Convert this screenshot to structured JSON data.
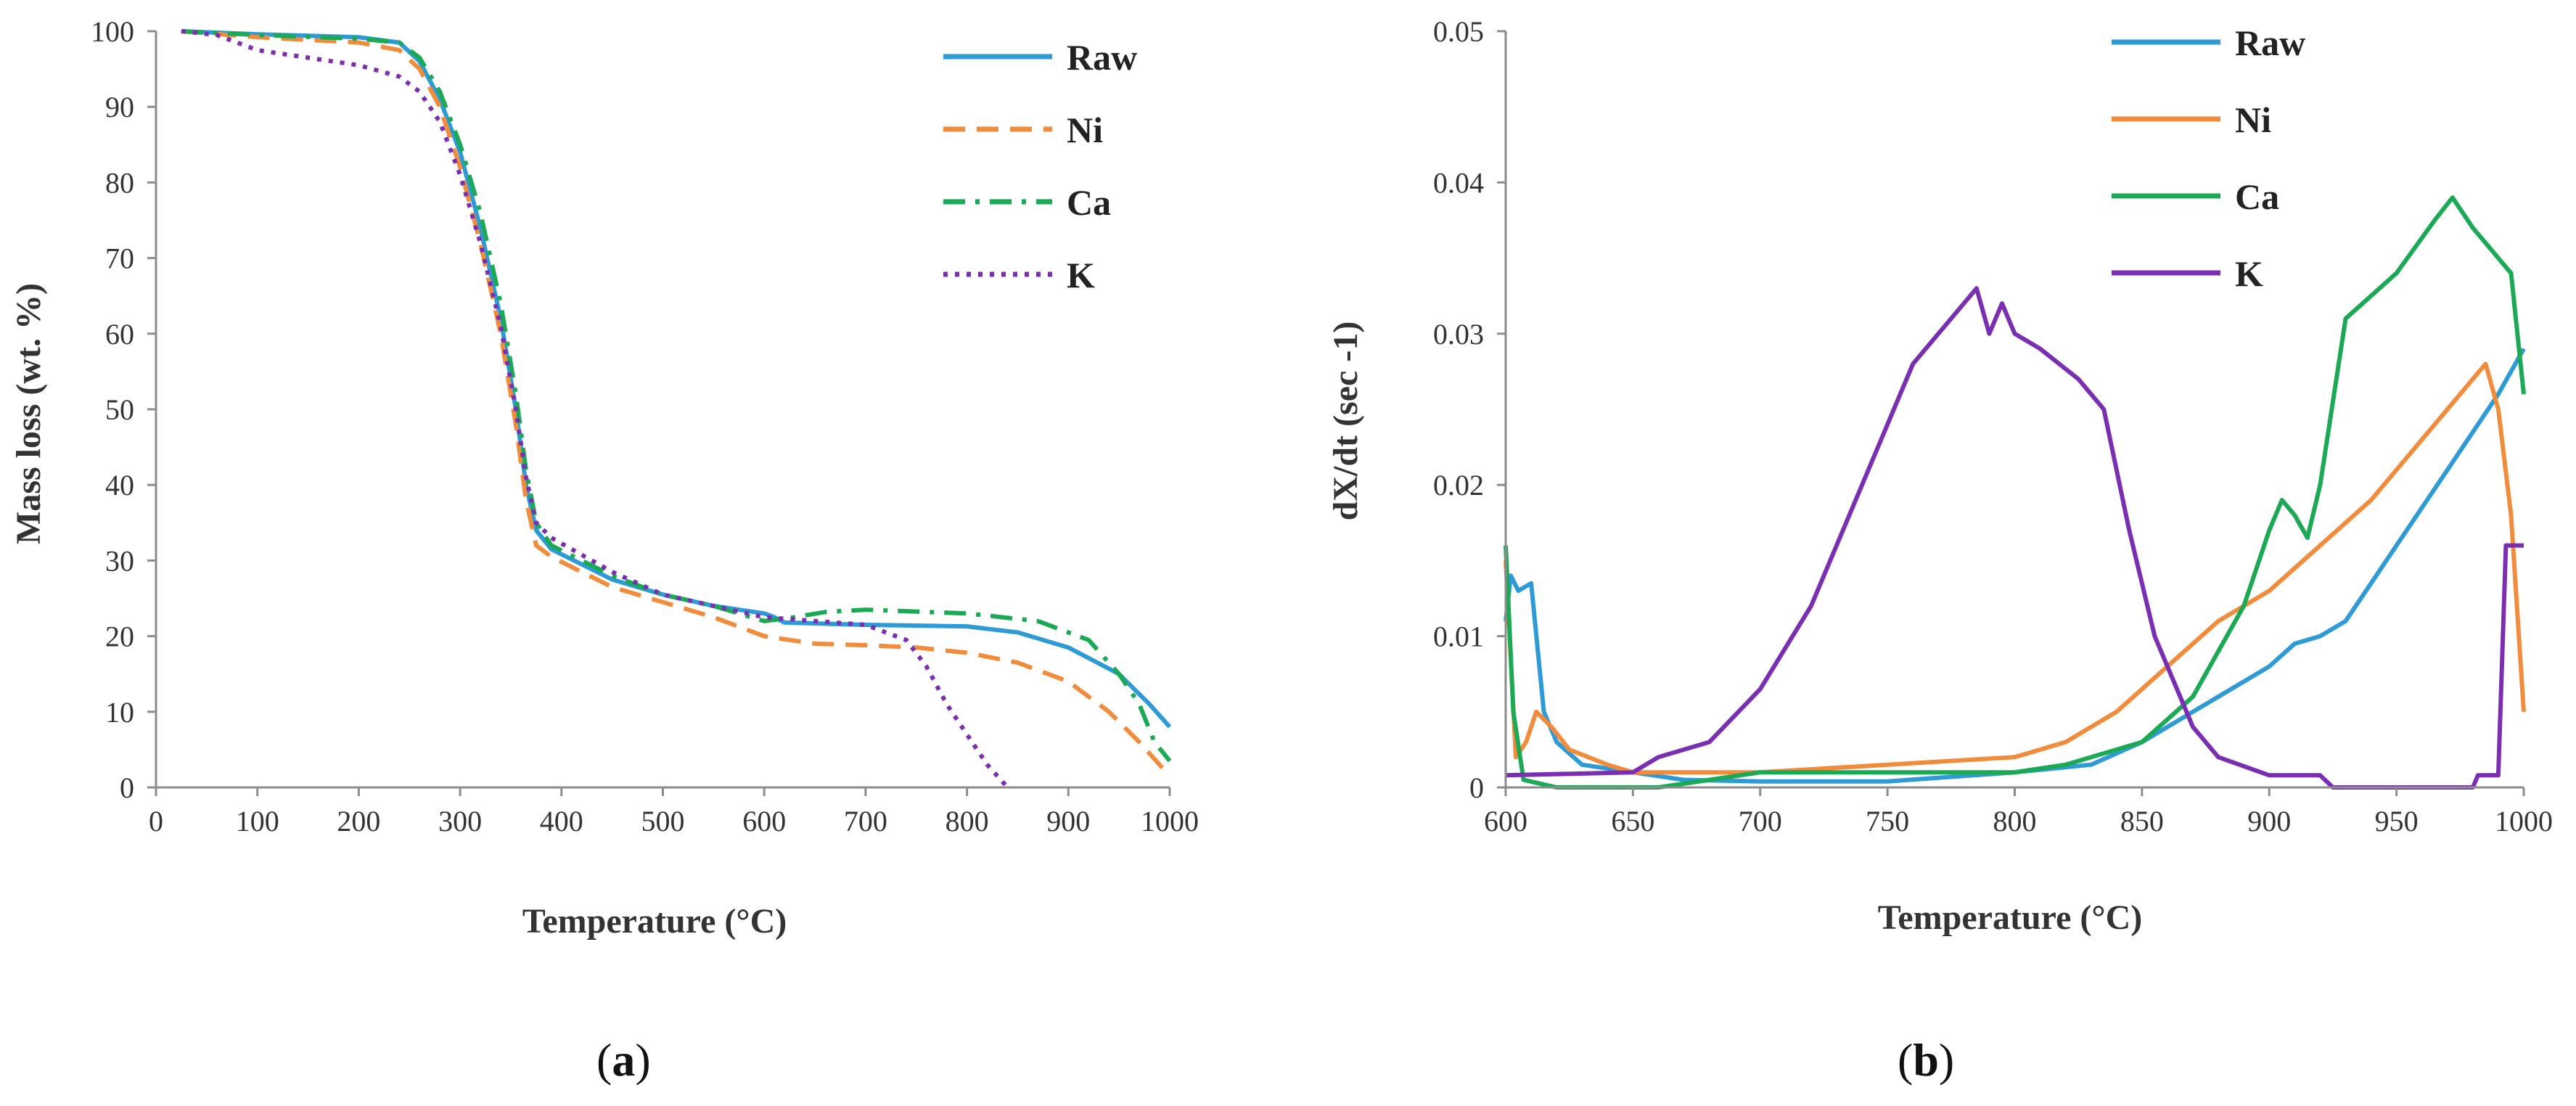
{
  "chart_data": [
    {
      "id": "a",
      "type": "line",
      "panel_label": "a",
      "xlabel": "Temperature (°C)",
      "ylabel": "Mass loss (wt. %)",
      "xlim": [
        0,
        1000
      ],
      "ylim": [
        0,
        100
      ],
      "xticks": [
        0,
        100,
        200,
        300,
        400,
        500,
        600,
        700,
        800,
        900,
        1000
      ],
      "yticks": [
        0,
        10,
        20,
        30,
        40,
        50,
        60,
        70,
        80,
        90,
        100
      ],
      "grid": false,
      "legend_position": "top-right",
      "series": [
        {
          "name": "Raw",
          "color": "#2e9bd6",
          "style": "solid",
          "points": [
            [
              25,
              100
            ],
            [
              100,
              99.6
            ],
            [
              200,
              99.2
            ],
            [
              240,
              98.5
            ],
            [
              260,
              96
            ],
            [
              280,
              91
            ],
            [
              300,
              84
            ],
            [
              320,
              74
            ],
            [
              340,
              62
            ],
            [
              355,
              50
            ],
            [
              365,
              40
            ],
            [
              375,
              34
            ],
            [
              390,
              31.5
            ],
            [
              450,
              27.5
            ],
            [
              500,
              25.5
            ],
            [
              550,
              24
            ],
            [
              600,
              23
            ],
            [
              610,
              22.5
            ],
            [
              620,
              21.8
            ],
            [
              700,
              21.5
            ],
            [
              800,
              21.3
            ],
            [
              850,
              20.5
            ],
            [
              900,
              18.5
            ],
            [
              950,
              15
            ],
            [
              980,
              11
            ],
            [
              1000,
              8
            ]
          ]
        },
        {
          "name": "Ni",
          "color": "#f08c3c",
          "style": "dashed",
          "points": [
            [
              25,
              100
            ],
            [
              100,
              99.2
            ],
            [
              200,
              98.5
            ],
            [
              240,
              97.5
            ],
            [
              260,
              95
            ],
            [
              280,
              90
            ],
            [
              300,
              82
            ],
            [
              320,
              72
            ],
            [
              340,
              60
            ],
            [
              355,
              48
            ],
            [
              365,
              38
            ],
            [
              375,
              32
            ],
            [
              390,
              30.5
            ],
            [
              450,
              26.5
            ],
            [
              500,
              24.5
            ],
            [
              550,
              22.5
            ],
            [
              600,
              20
            ],
            [
              650,
              19
            ],
            [
              700,
              18.8
            ],
            [
              750,
              18.5
            ],
            [
              800,
              17.8
            ],
            [
              850,
              16.5
            ],
            [
              900,
              14
            ],
            [
              940,
              10
            ],
            [
              970,
              6
            ],
            [
              990,
              3
            ],
            [
              1000,
              1.5
            ]
          ]
        },
        {
          "name": "Ca",
          "color": "#1ba955",
          "style": "dashdot",
          "points": [
            [
              25,
              100
            ],
            [
              100,
              99.5
            ],
            [
              200,
              99
            ],
            [
              240,
              98.5
            ],
            [
              260,
              96.5
            ],
            [
              280,
              92
            ],
            [
              300,
              85
            ],
            [
              320,
              76
            ],
            [
              340,
              64
            ],
            [
              355,
              52
            ],
            [
              365,
              42
            ],
            [
              375,
              35
            ],
            [
              390,
              32
            ],
            [
              450,
              28
            ],
            [
              500,
              25.5
            ],
            [
              550,
              24
            ],
            [
              600,
              22
            ],
            [
              630,
              22.5
            ],
            [
              660,
              23.2
            ],
            [
              700,
              23.5
            ],
            [
              800,
              23
            ],
            [
              870,
              22
            ],
            [
              920,
              19.5
            ],
            [
              950,
              15
            ],
            [
              970,
              11
            ],
            [
              985,
              6
            ],
            [
              1000,
              3.5
            ]
          ]
        },
        {
          "name": "K",
          "color": "#7a2fb3",
          "style": "dotted",
          "points": [
            [
              25,
              100
            ],
            [
              60,
              99.5
            ],
            [
              100,
              97.5
            ],
            [
              150,
              96.5
            ],
            [
              200,
              95.5
            ],
            [
              240,
              94
            ],
            [
              260,
              92
            ],
            [
              280,
              88
            ],
            [
              300,
              81
            ],
            [
              320,
              72
            ],
            [
              340,
              61
            ],
            [
              355,
              50
            ],
            [
              365,
              41
            ],
            [
              375,
              35
            ],
            [
              390,
              33
            ],
            [
              450,
              28.5
            ],
            [
              500,
              25.5
            ],
            [
              550,
              24
            ],
            [
              600,
              22.5
            ],
            [
              650,
              22
            ],
            [
              700,
              21.5
            ],
            [
              740,
              19.5
            ],
            [
              760,
              16
            ],
            [
              780,
              11
            ],
            [
              800,
              7
            ],
            [
              820,
              3
            ],
            [
              840,
              0
            ]
          ]
        }
      ]
    },
    {
      "id": "b",
      "type": "line",
      "panel_label": "b",
      "xlabel": "Temperature (°C)",
      "ylabel": "dX/dt (sec -1)",
      "xlim": [
        600,
        1000
      ],
      "ylim": [
        0,
        0.05
      ],
      "xticks": [
        600,
        650,
        700,
        750,
        800,
        850,
        900,
        950,
        1000
      ],
      "yticks": [
        0,
        0.01,
        0.02,
        0.03,
        0.04,
        0.05
      ],
      "grid": false,
      "legend_position": "top-right",
      "series": [
        {
          "name": "Raw",
          "color": "#2e9bd6",
          "style": "solid",
          "points": [
            [
              600,
              0.011
            ],
            [
              602,
              0.014
            ],
            [
              605,
              0.013
            ],
            [
              610,
              0.0135
            ],
            [
              615,
              0.005
            ],
            [
              620,
              0.003
            ],
            [
              630,
              0.0015
            ],
            [
              650,
              0.001
            ],
            [
              670,
              0.0005
            ],
            [
              700,
              0.0004
            ],
            [
              750,
              0.0004
            ],
            [
              800,
              0.001
            ],
            [
              830,
              0.0015
            ],
            [
              850,
              0.003
            ],
            [
              870,
              0.005
            ],
            [
              880,
              0.006
            ],
            [
              900,
              0.008
            ],
            [
              910,
              0.0095
            ],
            [
              920,
              0.01
            ],
            [
              930,
              0.011
            ],
            [
              950,
              0.016
            ],
            [
              970,
              0.021
            ],
            [
              990,
              0.026
            ],
            [
              1000,
              0.029
            ]
          ]
        },
        {
          "name": "Ni",
          "color": "#f08c3c",
          "style": "solid",
          "points": [
            [
              600,
              0.015
            ],
            [
              604,
              0.002
            ],
            [
              608,
              0.003
            ],
            [
              612,
              0.005
            ],
            [
              618,
              0.004
            ],
            [
              625,
              0.0025
            ],
            [
              640,
              0.0015
            ],
            [
              650,
              0.001
            ],
            [
              700,
              0.001
            ],
            [
              750,
              0.0015
            ],
            [
              800,
              0.002
            ],
            [
              820,
              0.003
            ],
            [
              840,
              0.005
            ],
            [
              860,
              0.008
            ],
            [
              880,
              0.011
            ],
            [
              900,
              0.013
            ],
            [
              920,
              0.016
            ],
            [
              940,
              0.019
            ],
            [
              960,
              0.023
            ],
            [
              980,
              0.027
            ],
            [
              985,
              0.028
            ],
            [
              990,
              0.025
            ],
            [
              995,
              0.018
            ],
            [
              1000,
              0.005
            ]
          ]
        },
        {
          "name": "Ca",
          "color": "#1ba955",
          "style": "solid",
          "points": [
            [
              600,
              0.016
            ],
            [
              603,
              0.005
            ],
            [
              607,
              0.0005
            ],
            [
              620,
              0
            ],
            [
              650,
              0
            ],
            [
              660,
              0
            ],
            [
              700,
              0.001
            ],
            [
              750,
              0.001
            ],
            [
              800,
              0.001
            ],
            [
              820,
              0.0015
            ],
            [
              850,
              0.003
            ],
            [
              870,
              0.006
            ],
            [
              890,
              0.012
            ],
            [
              900,
              0.017
            ],
            [
              905,
              0.019
            ],
            [
              910,
              0.018
            ],
            [
              915,
              0.0165
            ],
            [
              920,
              0.02
            ],
            [
              930,
              0.031
            ],
            [
              950,
              0.034
            ],
            [
              965,
              0.0375
            ],
            [
              972,
              0.039
            ],
            [
              980,
              0.037
            ],
            [
              990,
              0.035
            ],
            [
              995,
              0.034
            ],
            [
              1000,
              0.026
            ]
          ]
        },
        {
          "name": "K",
          "color": "#7a2fb3",
          "style": "solid",
          "points": [
            [
              600,
              0.0008
            ],
            [
              650,
              0.001
            ],
            [
              660,
              0.002
            ],
            [
              680,
              0.003
            ],
            [
              700,
              0.0065
            ],
            [
              720,
              0.012
            ],
            [
              740,
              0.02
            ],
            [
              760,
              0.028
            ],
            [
              775,
              0.031
            ],
            [
              785,
              0.033
            ],
            [
              790,
              0.03
            ],
            [
              795,
              0.032
            ],
            [
              800,
              0.03
            ],
            [
              810,
              0.029
            ],
            [
              825,
              0.027
            ],
            [
              835,
              0.025
            ],
            [
              845,
              0.017
            ],
            [
              855,
              0.01
            ],
            [
              870,
              0.004
            ],
            [
              880,
              0.002
            ],
            [
              900,
              0.0008
            ],
            [
              920,
              0.0008
            ],
            [
              925,
              0
            ],
            [
              980,
              0
            ],
            [
              982,
              0.0008
            ],
            [
              990,
              0.0008
            ],
            [
              993,
              0.016
            ],
            [
              1000,
              0.016
            ]
          ]
        }
      ]
    }
  ]
}
